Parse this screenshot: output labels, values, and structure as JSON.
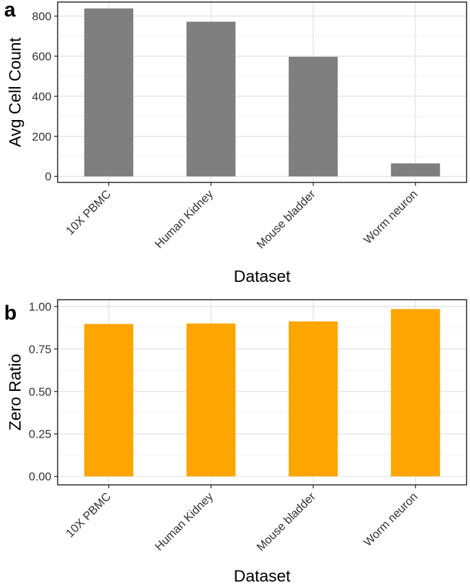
{
  "chart_data": [
    {
      "panel": "a",
      "type": "bar",
      "categories": [
        "10X PBMC",
        "Human Kidney",
        "Mouse bladder",
        "Worm neuron"
      ],
      "values": [
        838,
        772,
        597,
        65
      ],
      "bar_color": "#7f7f7f",
      "xlabel": "Dataset",
      "ylabel": "Avg Cell Count",
      "ylim": [
        -30,
        870
      ],
      "yticks": [
        0,
        200,
        400,
        600,
        800
      ],
      "ytick_labels": [
        "0",
        "200",
        "400",
        "600",
        "800"
      ],
      "grid": true
    },
    {
      "panel": "b",
      "type": "bar",
      "categories": [
        "10X PBMC",
        "Human Kidney",
        "Mouse bladder",
        "Worm neuron"
      ],
      "values": [
        0.897,
        0.9,
        0.912,
        0.985
      ],
      "bar_color": "#ffa500",
      "xlabel": "Dataset",
      "ylabel": "Zero Ratio",
      "ylim": [
        -0.05,
        1.04
      ],
      "yticks": [
        0,
        0.25,
        0.5,
        0.75,
        1.0
      ],
      "ytick_labels": [
        "0.00",
        "0.25",
        "0.50",
        "0.75",
        "1.00"
      ],
      "grid": true
    }
  ]
}
